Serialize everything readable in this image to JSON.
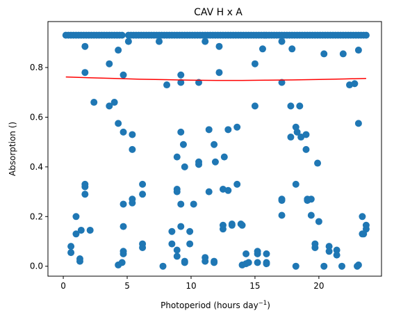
{
  "chart_data": {
    "type": "scatter",
    "title": "CAV H x A",
    "xlabel": "Photoperiod (hours day",
    "xlabel_sup": "−1",
    "xlabel_close": ")",
    "ylabel": "Absorption ()",
    "xlim": [
      -1.2,
      24.9
    ],
    "ylim": [
      -0.04,
      0.985
    ],
    "x_ticks": [
      0,
      5,
      10,
      15,
      20
    ],
    "y_ticks": [
      0.0,
      0.2,
      0.4,
      0.6,
      0.8
    ],
    "x_tick_labels": [
      "0",
      "5",
      "10",
      "15",
      "20"
    ],
    "y_tick_labels": [
      "0.0",
      "0.2",
      "0.4",
      "0.6",
      "0.8"
    ],
    "grid": false,
    "legend": "none",
    "colors": {
      "points": "#1f77b4",
      "trend": "#ff0000"
    },
    "top_row": {
      "y": 0.93,
      "x": [
        0.2,
        0.4,
        0.6,
        0.8,
        1.0,
        1.2,
        1.4,
        1.6,
        1.8,
        2.0,
        2.2,
        2.4,
        2.6,
        2.8,
        3.0,
        3.2,
        3.4,
        3.6,
        3.8,
        4.0,
        4.2,
        4.4,
        4.6,
        5.1,
        5.3,
        5.5,
        5.7,
        5.9,
        6.1,
        6.3,
        6.5,
        6.7,
        6.9,
        7.1,
        7.3,
        7.5,
        7.7,
        7.9,
        8.1,
        8.3,
        8.5,
        8.7,
        8.9,
        9.1,
        9.3,
        9.5,
        9.7,
        9.9,
        10.1,
        10.3,
        10.5,
        10.7,
        10.9,
        11.1,
        11.3,
        11.5,
        11.7,
        11.9,
        12.1,
        12.3,
        12.5,
        12.7,
        12.9,
        13.1,
        13.3,
        13.5,
        13.7,
        13.9,
        14.1,
        14.3,
        14.5,
        14.7,
        14.9,
        15.1,
        15.3,
        15.5,
        15.7,
        15.9,
        16.1,
        16.3,
        16.5,
        16.7,
        16.9,
        17.1,
        17.3,
        17.5,
        17.7,
        17.9,
        18.1,
        18.3,
        18.5,
        18.7,
        18.9,
        19.1,
        19.3,
        19.5,
        19.7,
        19.9,
        20.1,
        20.3,
        20.5,
        20.7,
        20.9,
        21.1,
        21.3,
        21.5,
        21.7,
        21.9,
        22.1,
        22.3,
        22.5,
        22.7,
        22.9,
        23.1,
        23.3,
        23.5,
        23.7
      ]
    },
    "points": [
      [
        1.7,
        0.885
      ],
      [
        1.7,
        0.78
      ],
      [
        3.6,
        0.815
      ],
      [
        4.3,
        0.87
      ],
      [
        4.7,
        0.77
      ],
      [
        5.1,
        0.905
      ],
      [
        7.5,
        0.905
      ],
      [
        9.2,
        0.77
      ],
      [
        9.2,
        0.74
      ],
      [
        10.6,
        0.74
      ],
      [
        11.1,
        0.905
      ],
      [
        12.2,
        0.885
      ],
      [
        12.2,
        0.78
      ],
      [
        15.0,
        0.815
      ],
      [
        15.6,
        0.875
      ],
      [
        17.1,
        0.905
      ],
      [
        17.9,
        0.875
      ],
      [
        20.4,
        0.855
      ],
      [
        21.9,
        0.855
      ],
      [
        23.1,
        0.87
      ],
      [
        22.4,
        0.73
      ],
      [
        22.8,
        0.735
      ],
      [
        17.1,
        0.74
      ],
      [
        8.1,
        0.73
      ],
      [
        2.4,
        0.66
      ],
      [
        3.6,
        0.645
      ],
      [
        4.0,
        0.66
      ],
      [
        4.3,
        0.575
      ],
      [
        4.7,
        0.54
      ],
      [
        5.4,
        0.53
      ],
      [
        5.4,
        0.47
      ],
      [
        9.2,
        0.54
      ],
      [
        9.4,
        0.49
      ],
      [
        8.9,
        0.44
      ],
      [
        9.5,
        0.4
      ],
      [
        10.6,
        0.42
      ],
      [
        10.6,
        0.41
      ],
      [
        11.4,
        0.55
      ],
      [
        11.8,
        0.49
      ],
      [
        12.6,
        0.44
      ],
      [
        11.9,
        0.42
      ],
      [
        12.9,
        0.55
      ],
      [
        13.6,
        0.56
      ],
      [
        15.0,
        0.645
      ],
      [
        17.8,
        0.645
      ],
      [
        17.8,
        0.52
      ],
      [
        18.2,
        0.56
      ],
      [
        18.3,
        0.54
      ],
      [
        18.6,
        0.52
      ],
      [
        18.5,
        0.645
      ],
      [
        19.0,
        0.53
      ],
      [
        19.0,
        0.47
      ],
      [
        19.9,
        0.415
      ],
      [
        23.1,
        0.575
      ],
      [
        0.6,
        0.08
      ],
      [
        0.6,
        0.055
      ],
      [
        1.0,
        0.2
      ],
      [
        1.0,
        0.13
      ],
      [
        1.4,
        0.145
      ],
      [
        1.3,
        0.03
      ],
      [
        1.3,
        0.02
      ],
      [
        1.7,
        0.33
      ],
      [
        1.7,
        0.32
      ],
      [
        1.7,
        0.29
      ],
      [
        2.1,
        0.145
      ],
      [
        4.3,
        0.005
      ],
      [
        4.6,
        0.015
      ],
      [
        4.7,
        0.25
      ],
      [
        4.7,
        0.16
      ],
      [
        4.7,
        0.06
      ],
      [
        4.7,
        0.05
      ],
      [
        5.4,
        0.27
      ],
      [
        5.4,
        0.255
      ],
      [
        6.2,
        0.33
      ],
      [
        6.2,
        0.29
      ],
      [
        6.2,
        0.09
      ],
      [
        6.2,
        0.075
      ],
      [
        7.8,
        0.0
      ],
      [
        8.5,
        0.14
      ],
      [
        8.5,
        0.09
      ],
      [
        8.9,
        0.31
      ],
      [
        8.9,
        0.3
      ],
      [
        8.9,
        0.065
      ],
      [
        8.9,
        0.04
      ],
      [
        9.2,
        0.25
      ],
      [
        9.2,
        0.16
      ],
      [
        9.5,
        0.02
      ],
      [
        9.5,
        0.015
      ],
      [
        9.9,
        0.14
      ],
      [
        9.9,
        0.09
      ],
      [
        10.2,
        0.25
      ],
      [
        11.1,
        0.035
      ],
      [
        11.1,
        0.02
      ],
      [
        11.4,
        0.3
      ],
      [
        11.8,
        0.02
      ],
      [
        11.8,
        0.015
      ],
      [
        12.5,
        0.31
      ],
      [
        12.5,
        0.165
      ],
      [
        12.5,
        0.15
      ],
      [
        12.9,
        0.305
      ],
      [
        13.2,
        0.17
      ],
      [
        13.2,
        0.165
      ],
      [
        13.6,
        0.33
      ],
      [
        13.9,
        0.17
      ],
      [
        14.0,
        0.165
      ],
      [
        14.0,
        0.005
      ],
      [
        14.3,
        0.05
      ],
      [
        14.5,
        0.015
      ],
      [
        14.3,
        0.01
      ],
      [
        15.2,
        0.06
      ],
      [
        15.2,
        0.05
      ],
      [
        15.2,
        0.015
      ],
      [
        15.9,
        0.05
      ],
      [
        15.9,
        0.015
      ],
      [
        15.9,
        0.01
      ],
      [
        17.1,
        0.27
      ],
      [
        17.1,
        0.265
      ],
      [
        17.1,
        0.205
      ],
      [
        18.2,
        0.33
      ],
      [
        18.2,
        0.0
      ],
      [
        19.1,
        0.27
      ],
      [
        19.1,
        0.265
      ],
      [
        19.4,
        0.27
      ],
      [
        19.4,
        0.205
      ],
      [
        19.7,
        0.09
      ],
      [
        19.7,
        0.075
      ],
      [
        20.0,
        0.18
      ],
      [
        20.4,
        0.0
      ],
      [
        20.8,
        0.08
      ],
      [
        20.8,
        0.06
      ],
      [
        21.4,
        0.065
      ],
      [
        21.4,
        0.045
      ],
      [
        21.8,
        0.0
      ],
      [
        23.0,
        0.0
      ],
      [
        23.1,
        0.005
      ],
      [
        23.4,
        0.2
      ],
      [
        23.5,
        0.13
      ],
      [
        23.4,
        0.13
      ],
      [
        23.7,
        0.165
      ],
      [
        23.7,
        0.15
      ]
    ],
    "trend_line": {
      "x": [
        0.2,
        2,
        4,
        6,
        8,
        10,
        12,
        14,
        16,
        18,
        20,
        22,
        23.7
      ],
      "y": [
        0.762,
        0.759,
        0.756,
        0.753,
        0.751,
        0.749,
        0.748,
        0.748,
        0.749,
        0.75,
        0.752,
        0.754,
        0.756
      ]
    }
  }
}
